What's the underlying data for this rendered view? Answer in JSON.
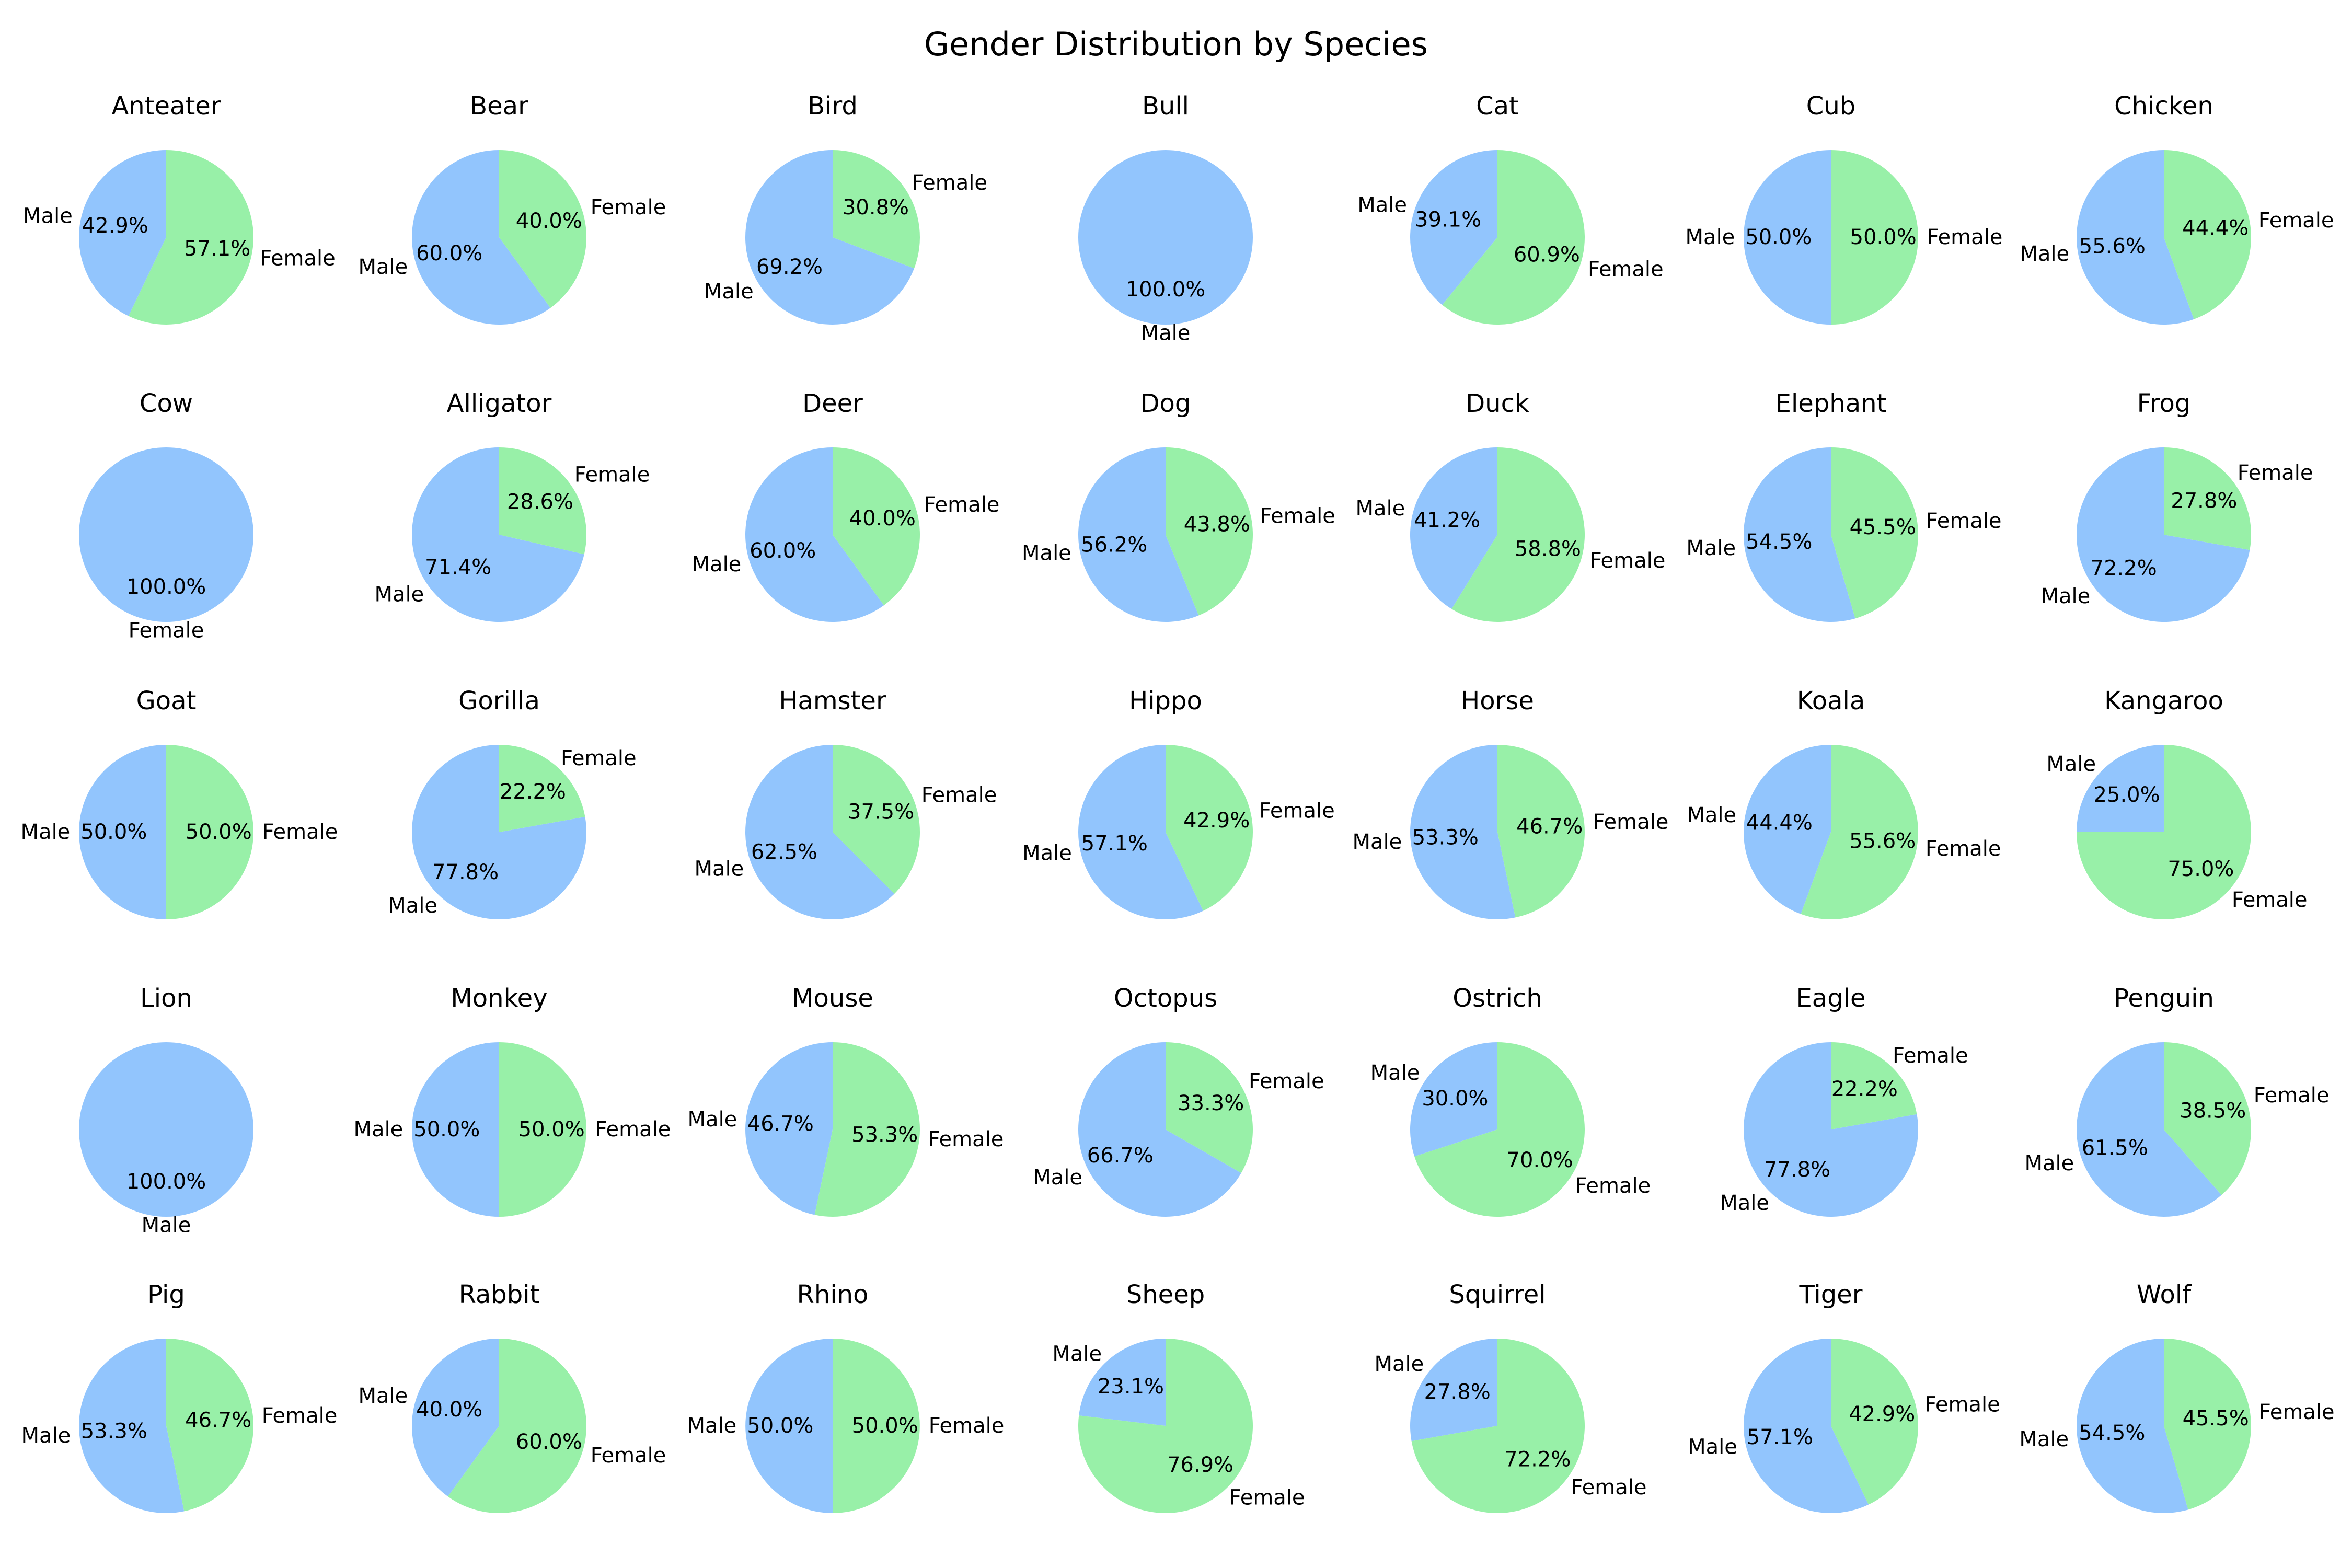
{
  "title": "Gender Distribution by Species",
  "colors": {
    "Male": "#92c5fd",
    "Female": "#98f0a8"
  },
  "chart_data": [
    {
      "type": "pie",
      "title": "Anteater",
      "slices": [
        {
          "label": "Male",
          "value": 42.9,
          "pct": "42.9%"
        },
        {
          "label": "Female",
          "value": 57.1,
          "pct": "57.1%"
        }
      ]
    },
    {
      "type": "pie",
      "title": "Bear",
      "slices": [
        {
          "label": "Male",
          "value": 60.0,
          "pct": "60.0%"
        },
        {
          "label": "Female",
          "value": 40.0,
          "pct": "40.0%"
        }
      ]
    },
    {
      "type": "pie",
      "title": "Bird",
      "slices": [
        {
          "label": "Male",
          "value": 69.2,
          "pct": "69.2%"
        },
        {
          "label": "Female",
          "value": 30.8,
          "pct": "30.8%"
        }
      ]
    },
    {
      "type": "pie",
      "title": "Bull",
      "slices": [
        {
          "label": "Male",
          "value": 100.0,
          "pct": "100.0%"
        }
      ]
    },
    {
      "type": "pie",
      "title": "Cat",
      "slices": [
        {
          "label": "Male",
          "value": 39.1,
          "pct": "39.1%"
        },
        {
          "label": "Female",
          "value": 60.9,
          "pct": "60.9%"
        }
      ]
    },
    {
      "type": "pie",
      "title": "Cub",
      "slices": [
        {
          "label": "Male",
          "value": 50.0,
          "pct": "50.0%"
        },
        {
          "label": "Female",
          "value": 50.0,
          "pct": "50.0%"
        }
      ]
    },
    {
      "type": "pie",
      "title": "Chicken",
      "slices": [
        {
          "label": "Male",
          "value": 55.6,
          "pct": "55.6%"
        },
        {
          "label": "Female",
          "value": 44.4,
          "pct": "44.4%"
        }
      ]
    },
    {
      "type": "pie",
      "title": "Cow",
      "slices": [
        {
          "label": "Female",
          "value": 100.0,
          "pct": "100.0%",
          "color": "Male"
        }
      ]
    },
    {
      "type": "pie",
      "title": "Alligator",
      "slices": [
        {
          "label": "Male",
          "value": 71.4,
          "pct": "71.4%"
        },
        {
          "label": "Female",
          "value": 28.6,
          "pct": "28.6%"
        }
      ]
    },
    {
      "type": "pie",
      "title": "Deer",
      "slices": [
        {
          "label": "Male",
          "value": 60.0,
          "pct": "60.0%"
        },
        {
          "label": "Female",
          "value": 40.0,
          "pct": "40.0%"
        }
      ]
    },
    {
      "type": "pie",
      "title": "Dog",
      "slices": [
        {
          "label": "Male",
          "value": 56.2,
          "pct": "56.2%"
        },
        {
          "label": "Female",
          "value": 43.8,
          "pct": "43.8%"
        }
      ]
    },
    {
      "type": "pie",
      "title": "Duck",
      "slices": [
        {
          "label": "Male",
          "value": 41.2,
          "pct": "41.2%"
        },
        {
          "label": "Female",
          "value": 58.8,
          "pct": "58.8%"
        }
      ]
    },
    {
      "type": "pie",
      "title": "Elephant",
      "slices": [
        {
          "label": "Male",
          "value": 54.5,
          "pct": "54.5%"
        },
        {
          "label": "Female",
          "value": 45.5,
          "pct": "45.5%"
        }
      ]
    },
    {
      "type": "pie",
      "title": "Frog",
      "slices": [
        {
          "label": "Male",
          "value": 72.2,
          "pct": "72.2%"
        },
        {
          "label": "Female",
          "value": 27.8,
          "pct": "27.8%"
        }
      ]
    },
    {
      "type": "pie",
      "title": "Goat",
      "slices": [
        {
          "label": "Male",
          "value": 50.0,
          "pct": "50.0%"
        },
        {
          "label": "Female",
          "value": 50.0,
          "pct": "50.0%"
        }
      ]
    },
    {
      "type": "pie",
      "title": "Gorilla",
      "slices": [
        {
          "label": "Male",
          "value": 77.8,
          "pct": "77.8%"
        },
        {
          "label": "Female",
          "value": 22.2,
          "pct": "22.2%"
        }
      ]
    },
    {
      "type": "pie",
      "title": "Hamster",
      "slices": [
        {
          "label": "Male",
          "value": 62.5,
          "pct": "62.5%"
        },
        {
          "label": "Female",
          "value": 37.5,
          "pct": "37.5%"
        }
      ]
    },
    {
      "type": "pie",
      "title": "Hippo",
      "slices": [
        {
          "label": "Male",
          "value": 57.1,
          "pct": "57.1%"
        },
        {
          "label": "Female",
          "value": 42.9,
          "pct": "42.9%"
        }
      ]
    },
    {
      "type": "pie",
      "title": "Horse",
      "slices": [
        {
          "label": "Male",
          "value": 53.3,
          "pct": "53.3%"
        },
        {
          "label": "Female",
          "value": 46.7,
          "pct": "46.7%"
        }
      ]
    },
    {
      "type": "pie",
      "title": "Koala",
      "slices": [
        {
          "label": "Male",
          "value": 44.4,
          "pct": "44.4%"
        },
        {
          "label": "Female",
          "value": 55.6,
          "pct": "55.6%"
        }
      ]
    },
    {
      "type": "pie",
      "title": "Kangaroo",
      "slices": [
        {
          "label": "Male",
          "value": 25.0,
          "pct": "25.0%"
        },
        {
          "label": "Female",
          "value": 75.0,
          "pct": "75.0%"
        }
      ]
    },
    {
      "type": "pie",
      "title": "Lion",
      "slices": [
        {
          "label": "Male",
          "value": 100.0,
          "pct": "100.0%"
        }
      ]
    },
    {
      "type": "pie",
      "title": "Monkey",
      "slices": [
        {
          "label": "Male",
          "value": 50.0,
          "pct": "50.0%"
        },
        {
          "label": "Female",
          "value": 50.0,
          "pct": "50.0%"
        }
      ]
    },
    {
      "type": "pie",
      "title": "Mouse",
      "slices": [
        {
          "label": "Male",
          "value": 46.7,
          "pct": "46.7%"
        },
        {
          "label": "Female",
          "value": 53.3,
          "pct": "53.3%"
        }
      ]
    },
    {
      "type": "pie",
      "title": "Octopus",
      "slices": [
        {
          "label": "Male",
          "value": 66.7,
          "pct": "66.7%"
        },
        {
          "label": "Female",
          "value": 33.3,
          "pct": "33.3%"
        }
      ]
    },
    {
      "type": "pie",
      "title": "Ostrich",
      "slices": [
        {
          "label": "Male",
          "value": 30.0,
          "pct": "30.0%"
        },
        {
          "label": "Female",
          "value": 70.0,
          "pct": "70.0%"
        }
      ]
    },
    {
      "type": "pie",
      "title": "Eagle",
      "slices": [
        {
          "label": "Male",
          "value": 77.8,
          "pct": "77.8%"
        },
        {
          "label": "Female",
          "value": 22.2,
          "pct": "22.2%"
        }
      ]
    },
    {
      "type": "pie",
      "title": "Penguin",
      "slices": [
        {
          "label": "Male",
          "value": 61.5,
          "pct": "61.5%"
        },
        {
          "label": "Female",
          "value": 38.5,
          "pct": "38.5%"
        }
      ]
    },
    {
      "type": "pie",
      "title": "Pig",
      "slices": [
        {
          "label": "Male",
          "value": 53.3,
          "pct": "53.3%"
        },
        {
          "label": "Female",
          "value": 46.7,
          "pct": "46.7%"
        }
      ]
    },
    {
      "type": "pie",
      "title": "Rabbit",
      "slices": [
        {
          "label": "Male",
          "value": 40.0,
          "pct": "40.0%"
        },
        {
          "label": "Female",
          "value": 60.0,
          "pct": "60.0%"
        }
      ]
    },
    {
      "type": "pie",
      "title": "Rhino",
      "slices": [
        {
          "label": "Male",
          "value": 50.0,
          "pct": "50.0%"
        },
        {
          "label": "Female",
          "value": 50.0,
          "pct": "50.0%"
        }
      ]
    },
    {
      "type": "pie",
      "title": "Sheep",
      "slices": [
        {
          "label": "Male",
          "value": 23.1,
          "pct": "23.1%"
        },
        {
          "label": "Female",
          "value": 76.9,
          "pct": "76.9%"
        }
      ]
    },
    {
      "type": "pie",
      "title": "Squirrel",
      "slices": [
        {
          "label": "Male",
          "value": 27.8,
          "pct": "27.8%"
        },
        {
          "label": "Female",
          "value": 72.2,
          "pct": "72.2%"
        }
      ]
    },
    {
      "type": "pie",
      "title": "Tiger",
      "slices": [
        {
          "label": "Male",
          "value": 57.1,
          "pct": "57.1%"
        },
        {
          "label": "Female",
          "value": 42.9,
          "pct": "42.9%"
        }
      ]
    },
    {
      "type": "pie",
      "title": "Wolf",
      "slices": [
        {
          "label": "Male",
          "value": 54.5,
          "pct": "54.5%"
        },
        {
          "label": "Female",
          "value": 45.5,
          "pct": "45.5%"
        }
      ]
    }
  ]
}
